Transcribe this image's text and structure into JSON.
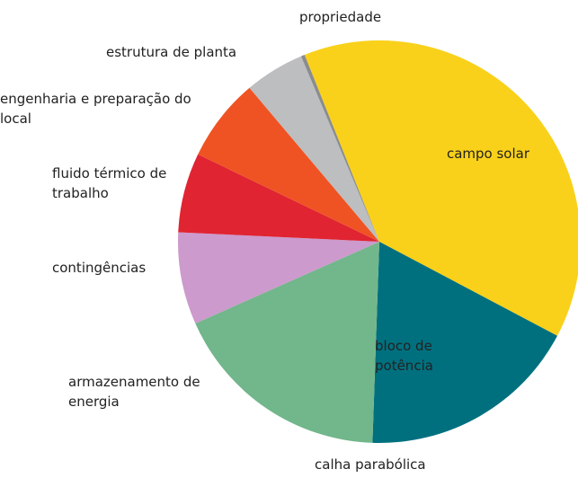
{
  "chart_data": {
    "type": "pie",
    "title": "calha parabólica",
    "categories": [
      "campo solar",
      "bloco de potência",
      "armazenamento de energia",
      "contingências",
      "fluido térmico de trabalho",
      "engenharia e preparação do local",
      "estrutura de planta",
      "propriedade"
    ],
    "values": [
      38.8,
      17.8,
      17.8,
      7.4,
      6.4,
      6.7,
      4.8,
      0.3
    ],
    "colors": [
      "#f9d11a",
      "#00707f",
      "#72b68b",
      "#cc9acc",
      "#e02432",
      "#f05323",
      "#bcbec0",
      "#8a8c8e"
    ]
  }
}
